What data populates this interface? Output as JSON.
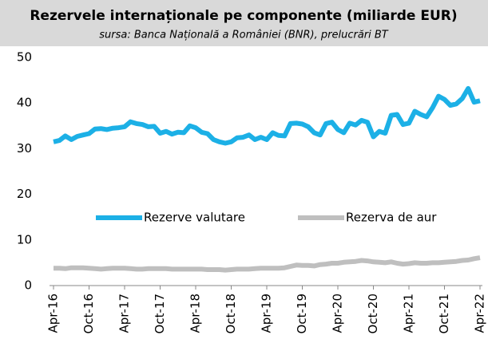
{
  "chart_data": {
    "type": "line",
    "title": "Rezervele internaționale pe componente (miliarde EUR)",
    "subtitle": "sursa: Banca Națională a României (BNR), prelucrări BT",
    "categories": [
      "Apr-16",
      null,
      null,
      null,
      null,
      null,
      "Oct-16",
      null,
      null,
      null,
      null,
      null,
      "Apr-17",
      null,
      null,
      null,
      null,
      null,
      "Oct-17",
      null,
      null,
      null,
      null,
      null,
      "Apr-18",
      null,
      null,
      null,
      null,
      null,
      "Oct-18",
      null,
      null,
      null,
      null,
      null,
      "Apr-19",
      null,
      null,
      null,
      null,
      null,
      "Oct-19",
      null,
      null,
      null,
      null,
      null,
      "Apr-20",
      null,
      null,
      null,
      null,
      null,
      "Oct-20",
      null,
      null,
      null,
      null,
      null,
      "Apr-21",
      null,
      null,
      null,
      null,
      null,
      "Oct-21",
      null,
      null,
      null,
      null,
      null,
      "Apr-22"
    ],
    "series": [
      {
        "name": "Rezerve valutare",
        "color": "#1cb0e6",
        "values": [
          31.5,
          31.8,
          32.8,
          32.0,
          32.7,
          33.0,
          33.3,
          34.3,
          34.4,
          34.2,
          34.5,
          34.6,
          34.8,
          35.9,
          35.5,
          35.3,
          34.8,
          34.9,
          33.4,
          33.8,
          33.2,
          33.6,
          33.5,
          35.0,
          34.6,
          33.6,
          33.3,
          32.0,
          31.5,
          31.2,
          31.5,
          32.4,
          32.5,
          33.0,
          32.0,
          32.5,
          32.0,
          33.5,
          32.9,
          32.8,
          35.5,
          35.6,
          35.4,
          34.8,
          33.5,
          33.0,
          35.5,
          35.8,
          34.2,
          33.5,
          35.6,
          35.2,
          36.2,
          35.8,
          32.6,
          33.8,
          33.4,
          37.3,
          37.5,
          35.3,
          35.6,
          38.2,
          37.5,
          37.0,
          39.0,
          41.5,
          40.8,
          39.5,
          39.8,
          41.0,
          43.2,
          40.2,
          40.5
        ]
      },
      {
        "name": "Rezerva de aur",
        "color": "#bfbfbf",
        "values": [
          3.8,
          3.8,
          3.7,
          3.9,
          3.9,
          3.9,
          3.8,
          3.7,
          3.6,
          3.7,
          3.8,
          3.8,
          3.8,
          3.7,
          3.6,
          3.6,
          3.7,
          3.7,
          3.7,
          3.7,
          3.6,
          3.6,
          3.6,
          3.6,
          3.6,
          3.6,
          3.5,
          3.5,
          3.5,
          3.4,
          3.5,
          3.6,
          3.6,
          3.6,
          3.7,
          3.8,
          3.8,
          3.8,
          3.8,
          3.9,
          4.2,
          4.5,
          4.4,
          4.4,
          4.3,
          4.6,
          4.7,
          4.9,
          4.9,
          5.1,
          5.2,
          5.3,
          5.5,
          5.4,
          5.2,
          5.1,
          5.0,
          5.2,
          4.9,
          4.7,
          4.8,
          5.0,
          4.9,
          4.9,
          5.0,
          5.0,
          5.1,
          5.2,
          5.3,
          5.5,
          5.6,
          5.9,
          6.1
        ]
      }
    ],
    "ylim": [
      0,
      50
    ],
    "yticks": [
      0,
      10,
      20,
      30,
      40,
      50
    ],
    "grid": false,
    "legend": "center"
  }
}
